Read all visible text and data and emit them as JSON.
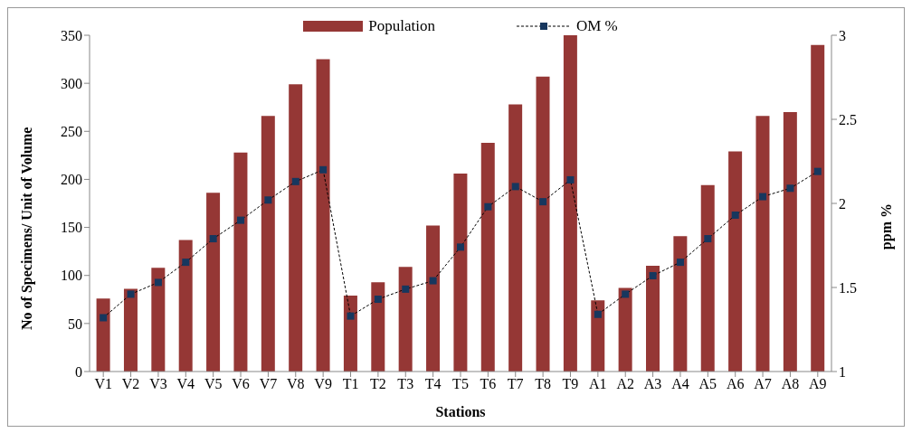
{
  "chart_data": {
    "type": "bar",
    "xlabel": "Stations",
    "ylabel": "No of Specimens/ Unit of Volume",
    "y2label": "ppm %",
    "categories": [
      "V1",
      "V2",
      "V3",
      "V4",
      "V5",
      "V6",
      "V7",
      "V8",
      "V9",
      "T1",
      "T2",
      "T3",
      "T4",
      "T5",
      "T6",
      "T7",
      "T8",
      "T9",
      "A1",
      "A2",
      "A3",
      "A4",
      "A5",
      "A6",
      "A7",
      "A8",
      "A9"
    ],
    "series": [
      {
        "name": "Population",
        "color": "#953735",
        "values": [
          76,
          86,
          108,
          137,
          186,
          228,
          266,
          299,
          325,
          79,
          93,
          109,
          152,
          206,
          238,
          278,
          307,
          350,
          74,
          87,
          110,
          141,
          194,
          229,
          266,
          270,
          340
        ]
      },
      {
        "name": "OM %",
        "type": "line",
        "axis": "y2",
        "color": "#17375e",
        "marker": "square",
        "line_style": "dashed",
        "values": [
          1.32,
          1.46,
          1.53,
          1.65,
          1.79,
          1.9,
          2.02,
          2.13,
          2.2,
          1.33,
          1.43,
          1.49,
          1.54,
          1.74,
          1.98,
          2.1,
          2.01,
          2.14,
          1.34,
          1.46,
          1.57,
          1.65,
          1.79,
          1.93,
          2.04,
          2.09,
          2.19
        ]
      }
    ],
    "ylim": [
      0,
      350
    ],
    "yticks": [
      0,
      50,
      100,
      150,
      200,
      250,
      300,
      350
    ],
    "y2lim": [
      1,
      3
    ],
    "y2ticks": [
      1,
      1.5,
      2,
      2.5,
      3
    ],
    "legend": "top"
  }
}
